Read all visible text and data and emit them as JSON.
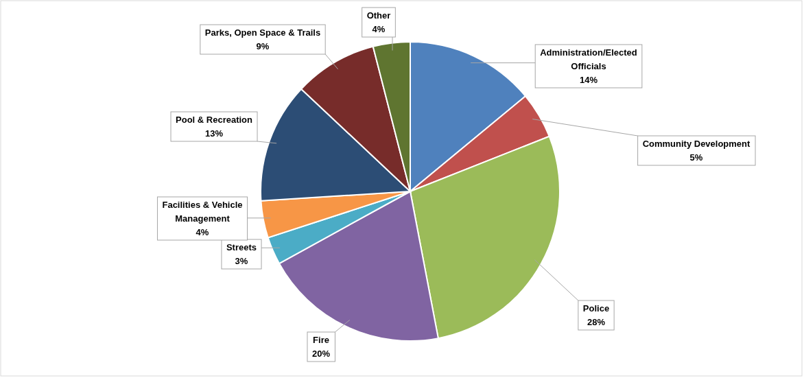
{
  "chart_data": {
    "type": "pie",
    "categories": [
      "Administration/Elected Officials",
      "Community Development",
      "Police",
      "Fire",
      "Streets",
      "Facilities & Vehicle Management",
      "Pool & Recreation",
      "Parks, Open Space & Trails",
      "Other"
    ],
    "values": [
      14,
      5,
      28,
      20,
      3,
      4,
      13,
      9,
      4
    ],
    "value_labels": [
      "14%",
      "5%",
      "28%",
      "20%",
      "3%",
      "4%",
      "13%",
      "9%",
      "4%"
    ],
    "colors": [
      "#4f81bd",
      "#c0504d",
      "#9bbb59",
      "#8064a2",
      "#4bacc6",
      "#f79646",
      "#2c4d75",
      "#772c2a",
      "#5f7530"
    ]
  }
}
